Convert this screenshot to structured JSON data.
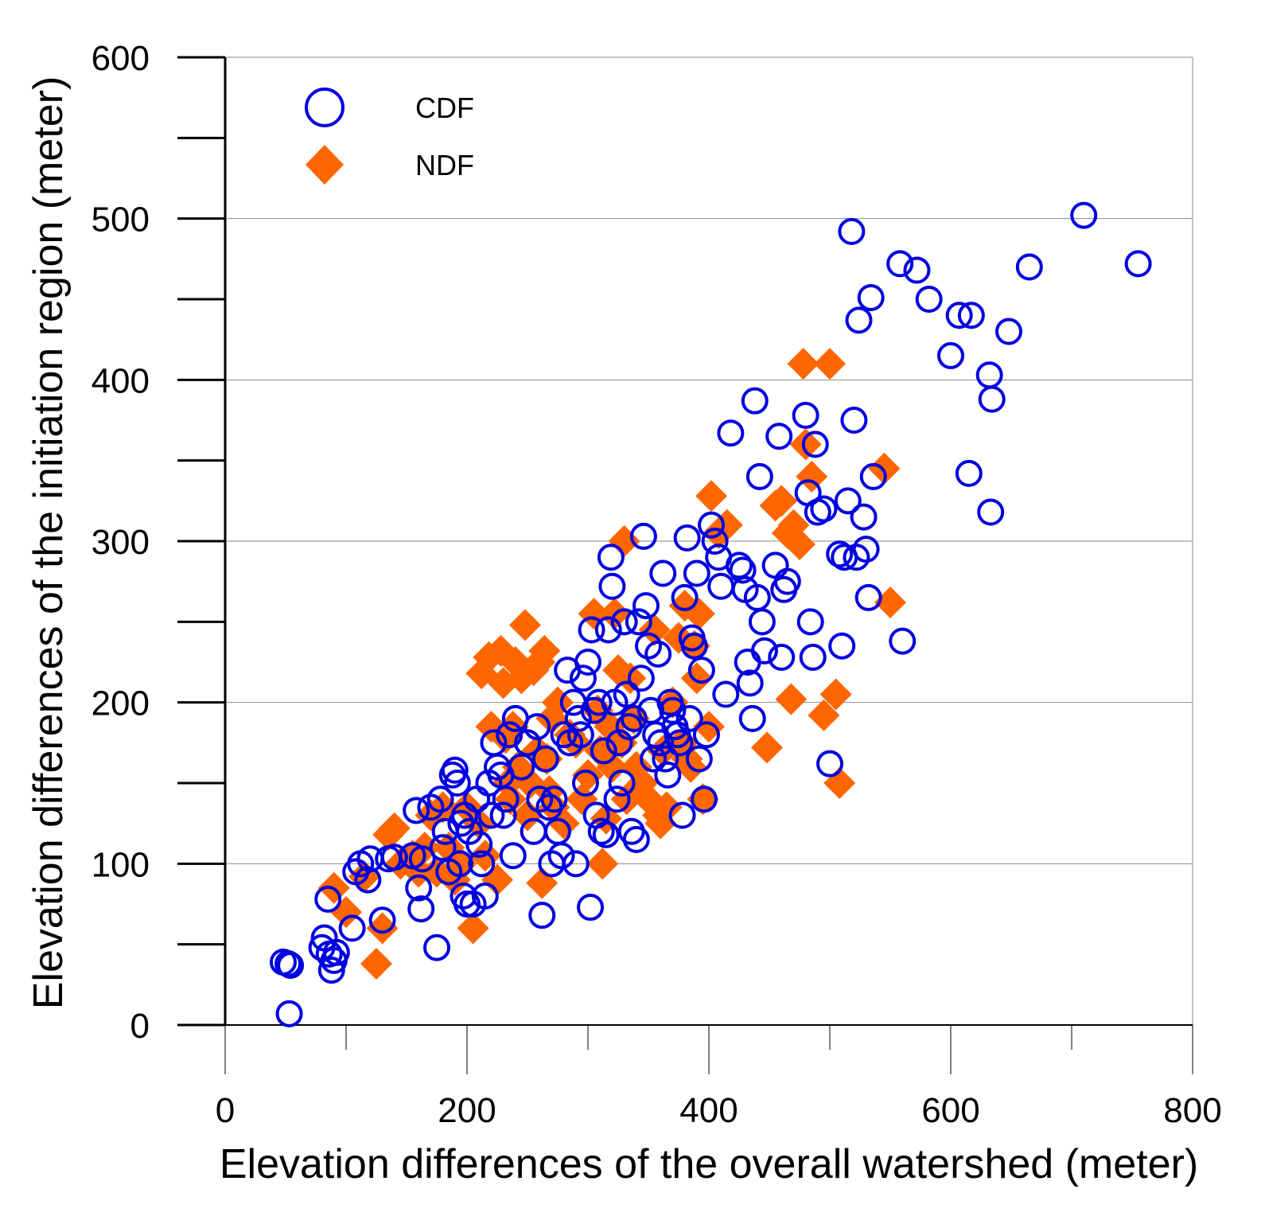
{
  "chart_data": {
    "type": "scatter",
    "title": "",
    "xlabel": "Elevation differences of the overall watershed (meter)",
    "ylabel": "Elevation differences of the initiation region (meter)",
    "xlim": [
      0,
      800
    ],
    "ylim": [
      0,
      600
    ],
    "xticks": [
      0,
      200,
      400,
      600,
      800
    ],
    "yticks": [
      0,
      100,
      200,
      300,
      400,
      500,
      600
    ],
    "grid": "horizontal",
    "legend_position": "top-left",
    "series": [
      {
        "name": "CDF",
        "marker": "open-circle",
        "color": "#0000E0",
        "points": [
          [
            48,
            39
          ],
          [
            52,
            38
          ],
          [
            54,
            37
          ],
          [
            53,
            7
          ],
          [
            80,
            48
          ],
          [
            82,
            54
          ],
          [
            85,
            78
          ],
          [
            86,
            44
          ],
          [
            88,
            34
          ],
          [
            90,
            40
          ],
          [
            92,
            45
          ],
          [
            105,
            60
          ],
          [
            108,
            95
          ],
          [
            112,
            100
          ],
          [
            118,
            90
          ],
          [
            120,
            103
          ],
          [
            130,
            65
          ],
          [
            135,
            103
          ],
          [
            140,
            104
          ],
          [
            155,
            105
          ],
          [
            158,
            133
          ],
          [
            160,
            85
          ],
          [
            162,
            72
          ],
          [
            163,
            103
          ],
          [
            170,
            135
          ],
          [
            175,
            48
          ],
          [
            178,
            140
          ],
          [
            180,
            110
          ],
          [
            182,
            120
          ],
          [
            185,
            95
          ],
          [
            188,
            155
          ],
          [
            190,
            158
          ],
          [
            192,
            150
          ],
          [
            194,
            100
          ],
          [
            195,
            125
          ],
          [
            197,
            80
          ],
          [
            198,
            130
          ],
          [
            200,
            75
          ],
          [
            202,
            120
          ],
          [
            205,
            75
          ],
          [
            208,
            140
          ],
          [
            210,
            112
          ],
          [
            212,
            100
          ],
          [
            215,
            80
          ],
          [
            218,
            150
          ],
          [
            220,
            130
          ],
          [
            222,
            175
          ],
          [
            225,
            160
          ],
          [
            228,
            155
          ],
          [
            230,
            130
          ],
          [
            232,
            140
          ],
          [
            235,
            180
          ],
          [
            238,
            105
          ],
          [
            240,
            190
          ],
          [
            245,
            160
          ],
          [
            250,
            175
          ],
          [
            255,
            120
          ],
          [
            258,
            185
          ],
          [
            260,
            140
          ],
          [
            262,
            68
          ],
          [
            265,
            165
          ],
          [
            268,
            135
          ],
          [
            270,
            100
          ],
          [
            272,
            140
          ],
          [
            275,
            120
          ],
          [
            278,
            105
          ],
          [
            280,
            180
          ],
          [
            283,
            220
          ],
          [
            285,
            175
          ],
          [
            288,
            200
          ],
          [
            290,
            100
          ],
          [
            292,
            190
          ],
          [
            294,
            180
          ],
          [
            296,
            215
          ],
          [
            298,
            150
          ],
          [
            300,
            225
          ],
          [
            302,
            73
          ],
          [
            303,
            245
          ],
          [
            305,
            195
          ],
          [
            307,
            130
          ],
          [
            309,
            200
          ],
          [
            311,
            120
          ],
          [
            313,
            170
          ],
          [
            315,
            118
          ],
          [
            317,
            245
          ],
          [
            319,
            290
          ],
          [
            320,
            272
          ],
          [
            322,
            200
          ],
          [
            324,
            140
          ],
          [
            326,
            175
          ],
          [
            328,
            150
          ],
          [
            330,
            250
          ],
          [
            332,
            205
          ],
          [
            334,
            185
          ],
          [
            336,
            120
          ],
          [
            338,
            190
          ],
          [
            340,
            115
          ],
          [
            342,
            250
          ],
          [
            344,
            215
          ],
          [
            346,
            303
          ],
          [
            348,
            260
          ],
          [
            350,
            235
          ],
          [
            352,
            195
          ],
          [
            354,
            165
          ],
          [
            356,
            180
          ],
          [
            358,
            230
          ],
          [
            360,
            175
          ],
          [
            362,
            280
          ],
          [
            364,
            165
          ],
          [
            366,
            155
          ],
          [
            368,
            200
          ],
          [
            370,
            195
          ],
          [
            372,
            185
          ],
          [
            374,
            180
          ],
          [
            376,
            175
          ],
          [
            378,
            130
          ],
          [
            380,
            265
          ],
          [
            382,
            302
          ],
          [
            384,
            190
          ],
          [
            386,
            240
          ],
          [
            388,
            235
          ],
          [
            390,
            280
          ],
          [
            392,
            165
          ],
          [
            394,
            220
          ],
          [
            396,
            140
          ],
          [
            398,
            180
          ],
          [
            402,
            310
          ],
          [
            405,
            300
          ],
          [
            408,
            290
          ],
          [
            410,
            272
          ],
          [
            414,
            205
          ],
          [
            418,
            367
          ],
          [
            425,
            285
          ],
          [
            428,
            282
          ],
          [
            430,
            270
          ],
          [
            432,
            225
          ],
          [
            434,
            212
          ],
          [
            436,
            190
          ],
          [
            438,
            387
          ],
          [
            440,
            265
          ],
          [
            442,
            340
          ],
          [
            444,
            250
          ],
          [
            446,
            232
          ],
          [
            455,
            285
          ],
          [
            458,
            365
          ],
          [
            460,
            228
          ],
          [
            462,
            270
          ],
          [
            465,
            275
          ],
          [
            480,
            378
          ],
          [
            482,
            330
          ],
          [
            484,
            250
          ],
          [
            486,
            228
          ],
          [
            488,
            360
          ],
          [
            490,
            318
          ],
          [
            495,
            320
          ],
          [
            500,
            162
          ],
          [
            508,
            292
          ],
          [
            510,
            235
          ],
          [
            512,
            290
          ],
          [
            515,
            325
          ],
          [
            518,
            492
          ],
          [
            520,
            375
          ],
          [
            522,
            290
          ],
          [
            524,
            437
          ],
          [
            528,
            315
          ],
          [
            530,
            295
          ],
          [
            532,
            265
          ],
          [
            534,
            451
          ],
          [
            536,
            340
          ],
          [
            558,
            472
          ],
          [
            560,
            238
          ],
          [
            572,
            468
          ],
          [
            582,
            450
          ],
          [
            600,
            415
          ],
          [
            607,
            440
          ],
          [
            615,
            342
          ],
          [
            617,
            440
          ],
          [
            632,
            403
          ],
          [
            633,
            318
          ],
          [
            634,
            388
          ],
          [
            648,
            430
          ],
          [
            665,
            470
          ],
          [
            710,
            502
          ],
          [
            755,
            472
          ]
        ]
      },
      {
        "name": "NDF",
        "marker": "filled-diamond",
        "color": "#FF6600",
        "points": [
          [
            90,
            85
          ],
          [
            100,
            70
          ],
          [
            115,
            92
          ],
          [
            125,
            38
          ],
          [
            130,
            60
          ],
          [
            135,
            118
          ],
          [
            140,
            122
          ],
          [
            145,
            100
          ],
          [
            155,
            105
          ],
          [
            160,
            95
          ],
          [
            165,
            110
          ],
          [
            170,
            130
          ],
          [
            175,
            95
          ],
          [
            180,
            135
          ],
          [
            185,
            110
          ],
          [
            190,
            90
          ],
          [
            195,
            100
          ],
          [
            200,
            135
          ],
          [
            205,
            60
          ],
          [
            210,
            125
          ],
          [
            212,
            218
          ],
          [
            215,
            105
          ],
          [
            218,
            228
          ],
          [
            220,
            185
          ],
          [
            225,
            90
          ],
          [
            228,
            232
          ],
          [
            230,
            212
          ],
          [
            232,
            178
          ],
          [
            234,
            150
          ],
          [
            236,
            140
          ],
          [
            238,
            185
          ],
          [
            240,
            225
          ],
          [
            242,
            160
          ],
          [
            245,
            215
          ],
          [
            248,
            248
          ],
          [
            250,
            130
          ],
          [
            252,
            150
          ],
          [
            255,
            220
          ],
          [
            258,
            170
          ],
          [
            260,
            225
          ],
          [
            262,
            88
          ],
          [
            264,
            232
          ],
          [
            266,
            165
          ],
          [
            268,
            145
          ],
          [
            270,
            190
          ],
          [
            272,
            135
          ],
          [
            275,
            200
          ],
          [
            280,
            125
          ],
          [
            285,
            180
          ],
          [
            290,
            175
          ],
          [
            295,
            140
          ],
          [
            300,
            155
          ],
          [
            305,
            255
          ],
          [
            308,
            195
          ],
          [
            310,
            170
          ],
          [
            312,
            100
          ],
          [
            315,
            128
          ],
          [
            318,
            185
          ],
          [
            320,
            160
          ],
          [
            322,
            255
          ],
          [
            325,
            220
          ],
          [
            328,
            175
          ],
          [
            330,
            300
          ],
          [
            332,
            140
          ],
          [
            335,
            215
          ],
          [
            338,
            190
          ],
          [
            340,
            160
          ],
          [
            345,
            150
          ],
          [
            350,
            140
          ],
          [
            355,
            245
          ],
          [
            358,
            130
          ],
          [
            360,
            125
          ],
          [
            362,
            170
          ],
          [
            365,
            135
          ],
          [
            370,
            200
          ],
          [
            375,
            240
          ],
          [
            378,
            175
          ],
          [
            380,
            260
          ],
          [
            382,
            165
          ],
          [
            385,
            160
          ],
          [
            388,
            235
          ],
          [
            390,
            215
          ],
          [
            392,
            255
          ],
          [
            395,
            140
          ],
          [
            400,
            185
          ],
          [
            402,
            328
          ],
          [
            408,
            305
          ],
          [
            415,
            310
          ],
          [
            448,
            172
          ],
          [
            455,
            322
          ],
          [
            460,
            325
          ],
          [
            465,
            305
          ],
          [
            468,
            202
          ],
          [
            470,
            310
          ],
          [
            475,
            298
          ],
          [
            478,
            410
          ],
          [
            480,
            360
          ],
          [
            485,
            340
          ],
          [
            495,
            192
          ],
          [
            500,
            410
          ],
          [
            505,
            205
          ],
          [
            508,
            150
          ],
          [
            545,
            345
          ],
          [
            550,
            262
          ]
        ]
      }
    ]
  }
}
